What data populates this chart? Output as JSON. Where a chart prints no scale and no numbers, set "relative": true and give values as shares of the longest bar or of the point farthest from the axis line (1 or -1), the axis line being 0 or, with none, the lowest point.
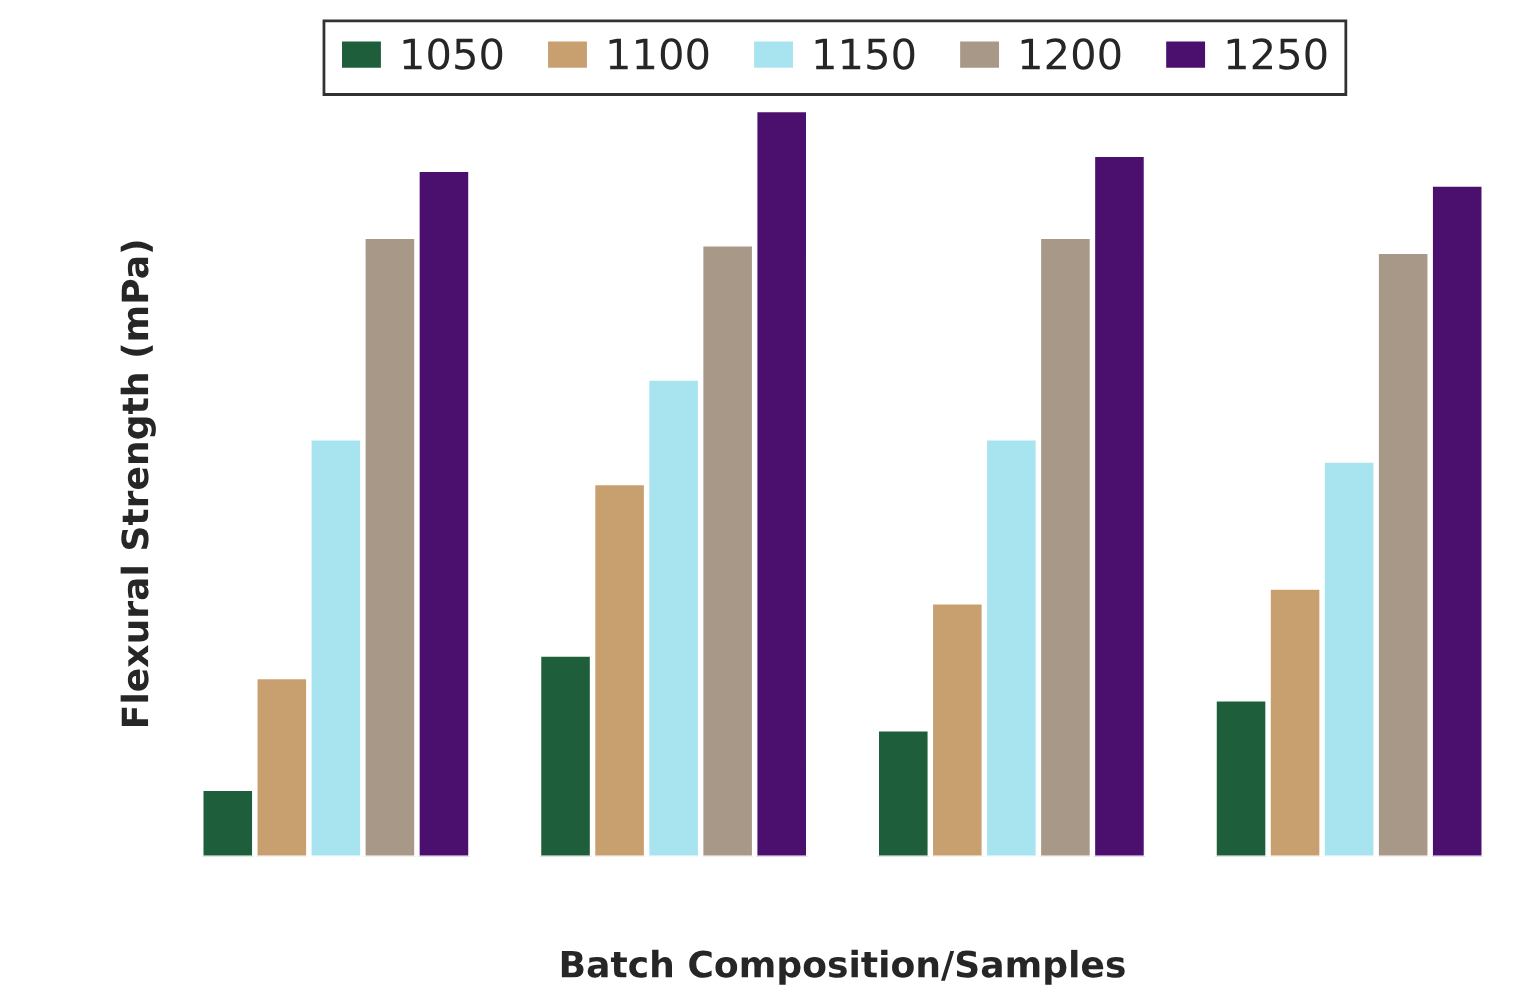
{
  "chart_data": {
    "type": "bar",
    "relative": true,
    "xlabel": "Batch Composition/Samples",
    "ylabel": "Flexural Strength (mPa)",
    "categories": [
      null,
      null,
      null,
      null
    ],
    "series": [
      {
        "name": "1050",
        "color": "#1e5e3a",
        "values": [
          0.09,
          0.27,
          0.17,
          0.21
        ]
      },
      {
        "name": "1100",
        "color": "#c8a070",
        "values": [
          0.24,
          0.5,
          0.34,
          0.36
        ]
      },
      {
        "name": "1150",
        "color": "#a8e4f0",
        "values": [
          0.56,
          0.64,
          0.56,
          0.53
        ]
      },
      {
        "name": "1200",
        "color": "#a89888",
        "values": [
          0.83,
          0.82,
          0.83,
          0.81
        ]
      },
      {
        "name": "1250",
        "color": "#4b0f6e",
        "values": [
          0.92,
          1,
          0.94,
          0.9
        ]
      }
    ],
    "legend": "top",
    "grid": false
  }
}
